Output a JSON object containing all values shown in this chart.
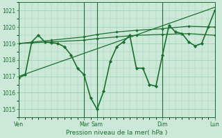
{
  "bg_color": "#cce8d8",
  "grid_color": "#99ccb0",
  "line_color": "#1a6e2e",
  "marker_color": "#1a6e2e",
  "xlabel": "Pression niveau de la mer( hPa )",
  "ylim": [
    1014.5,
    1021.5
  ],
  "yticks": [
    1015,
    1016,
    1017,
    1018,
    1019,
    1020,
    1021
  ],
  "x_day_labels": [
    "Ven",
    "Mar",
    "Sam",
    "Dim",
    "Lun"
  ],
  "x_day_positions": [
    0,
    10,
    12,
    22,
    30
  ],
  "xlim": [
    0,
    30
  ],
  "series": [
    {
      "x": [
        0,
        1,
        2,
        3,
        4,
        5,
        6,
        7,
        8,
        9,
        10,
        11,
        12,
        13,
        14,
        15,
        16,
        17,
        18,
        19,
        20,
        21,
        22,
        23,
        24,
        25,
        26,
        27,
        28,
        29,
        30
      ],
      "y": [
        1016.9,
        1017.1,
        1019.1,
        1019.5,
        1019.1,
        1019.05,
        1019.0,
        1018.8,
        1018.3,
        1017.5,
        1017.1,
        1015.7,
        1015.0,
        1016.1,
        1017.9,
        1018.8,
        1019.1,
        1019.5,
        1017.5,
        1017.5,
        1016.5,
        1016.4,
        1018.3,
        1020.1,
        1019.7,
        1019.6,
        1019.1,
        1018.85,
        1019.0,
        1020.0,
        1021.0
      ],
      "lw": 1.2,
      "marker": "D",
      "ms": 2.2
    },
    {
      "x": [
        0,
        5,
        10,
        12,
        15,
        18,
        22,
        26,
        30
      ],
      "y": [
        1019.0,
        1019.1,
        1019.2,
        1019.3,
        1019.4,
        1019.5,
        1019.55,
        1019.6,
        1019.5
      ],
      "lw": 0.9,
      "marker": "D",
      "ms": 1.8
    },
    {
      "x": [
        0,
        5,
        10,
        12,
        15,
        18,
        22,
        26,
        30
      ],
      "y": [
        1019.0,
        1019.2,
        1019.4,
        1019.55,
        1019.7,
        1019.8,
        1019.9,
        1020.05,
        1020.0
      ],
      "lw": 0.9,
      "marker": "D",
      "ms": 1.8
    },
    {
      "x": [
        0,
        30
      ],
      "y": [
        1017.0,
        1021.2
      ],
      "lw": 0.9,
      "marker": null,
      "ms": 0
    }
  ],
  "vlines_x": [
    0,
    10,
    12,
    22,
    30
  ],
  "figsize": [
    3.2,
    2.0
  ],
  "dpi": 100
}
